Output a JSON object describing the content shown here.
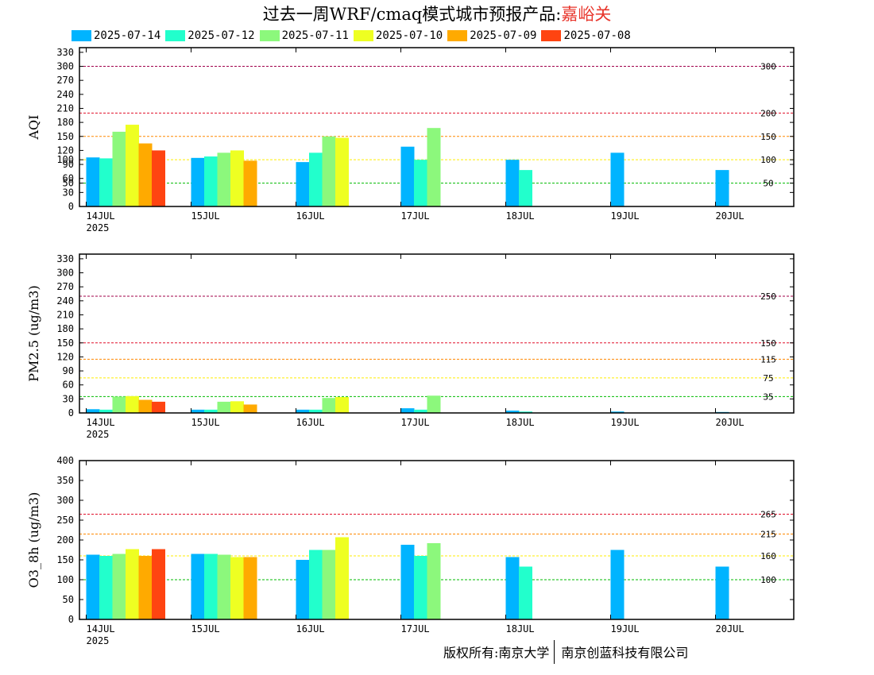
{
  "title": {
    "main": "过去一周WRF/cmaq模式城市预报产品:",
    "city": "嘉峪关"
  },
  "footer": {
    "left": "版权所有:南京大学",
    "right": "南京创蓝科技有限公司"
  },
  "colors": {
    "2025-07-14": "#00b4ff",
    "2025-07-12": "#22ffcc",
    "2025-07-11": "#8cf87c",
    "2025-07-10": "#eeff22",
    "2025-07-09": "#ffaa00",
    "2025-07-08": "#ff4411"
  },
  "chart_data": [
    {
      "type": "bar",
      "ylabel": "AQI",
      "ylim": [
        0,
        340
      ],
      "yticks": [
        0,
        30,
        50,
        60,
        90,
        100,
        120,
        150,
        180,
        210,
        240,
        270,
        300,
        330
      ],
      "categories": [
        "14JUL",
        "15JUL",
        "16JUL",
        "17JUL",
        "18JUL",
        "19JUL",
        "20JUL"
      ],
      "year_label": "2025",
      "reference_lines": [
        {
          "value": 300,
          "label": "300",
          "color": "#a0004a"
        },
        {
          "value": 200,
          "label": "200",
          "color": "#e0102a"
        },
        {
          "value": 150,
          "label": "150",
          "color": "#ff8800"
        },
        {
          "value": 100,
          "label": "100",
          "color": "#ffee00"
        },
        {
          "value": 50,
          "label": "50",
          "color": "#00bb00"
        }
      ],
      "series": [
        {
          "name": "2025-07-14",
          "values": [
            105,
            104,
            95,
            128,
            100,
            115,
            78
          ]
        },
        {
          "name": "2025-07-12",
          "values": [
            103,
            107,
            115,
            100,
            78,
            null,
            null
          ]
        },
        {
          "name": "2025-07-11",
          "values": [
            160,
            115,
            150,
            168,
            null,
            null,
            null
          ]
        },
        {
          "name": "2025-07-10",
          "values": [
            175,
            120,
            147,
            null,
            null,
            null,
            null
          ]
        },
        {
          "name": "2025-07-09",
          "values": [
            135,
            98,
            null,
            null,
            null,
            null,
            null
          ]
        },
        {
          "name": "2025-07-08",
          "values": [
            120,
            null,
            null,
            null,
            null,
            null,
            null
          ]
        }
      ]
    },
    {
      "type": "bar",
      "ylabel": "PM2.5 (ug/m3)",
      "ylim": [
        0,
        340
      ],
      "yticks": [
        0,
        30,
        60,
        90,
        120,
        150,
        180,
        210,
        240,
        270,
        300,
        330
      ],
      "categories": [
        "14JUL",
        "15JUL",
        "16JUL",
        "17JUL",
        "18JUL",
        "19JUL",
        "20JUL"
      ],
      "year_label": "2025",
      "reference_lines": [
        {
          "value": 250,
          "label": "250",
          "color": "#a0004a"
        },
        {
          "value": 150,
          "label": "150",
          "color": "#e0102a"
        },
        {
          "value": 115,
          "label": "115",
          "color": "#ff8800"
        },
        {
          "value": 75,
          "label": "75",
          "color": "#ffee00"
        },
        {
          "value": 35,
          "label": "35",
          "color": "#00bb00"
        }
      ],
      "series": [
        {
          "name": "2025-07-14",
          "values": [
            8,
            7,
            7,
            10,
            5,
            3,
            2
          ]
        },
        {
          "name": "2025-07-12",
          "values": [
            7,
            7,
            7,
            7,
            3,
            null,
            null
          ]
        },
        {
          "name": "2025-07-11",
          "values": [
            35,
            24,
            32,
            37,
            null,
            null,
            null
          ]
        },
        {
          "name": "2025-07-10",
          "values": [
            36,
            25,
            34,
            null,
            null,
            null,
            null
          ]
        },
        {
          "name": "2025-07-09",
          "values": [
            28,
            18,
            null,
            null,
            null,
            null,
            null
          ]
        },
        {
          "name": "2025-07-08",
          "values": [
            24,
            null,
            null,
            null,
            null,
            null,
            null
          ]
        }
      ]
    },
    {
      "type": "bar",
      "ylabel": "O3_8h (ug/m3)",
      "ylim": [
        0,
        400
      ],
      "yticks": [
        0,
        50,
        100,
        150,
        200,
        250,
        300,
        350,
        400
      ],
      "categories": [
        "14JUL",
        "15JUL",
        "16JUL",
        "17JUL",
        "18JUL",
        "19JUL",
        "20JUL"
      ],
      "year_label": "2025",
      "reference_lines": [
        {
          "value": 265,
          "label": "265",
          "color": "#e0102a"
        },
        {
          "value": 215,
          "label": "215",
          "color": "#ff8800"
        },
        {
          "value": 160,
          "label": "160",
          "color": "#ffee00"
        },
        {
          "value": 100,
          "label": "100",
          "color": "#00bb00"
        }
      ],
      "series": [
        {
          "name": "2025-07-14",
          "values": [
            163,
            165,
            150,
            188,
            157,
            175,
            133
          ]
        },
        {
          "name": "2025-07-12",
          "values": [
            160,
            165,
            175,
            160,
            133,
            null,
            null
          ]
        },
        {
          "name": "2025-07-11",
          "values": [
            165,
            163,
            175,
            192,
            null,
            null,
            null
          ]
        },
        {
          "name": "2025-07-10",
          "values": [
            177,
            157,
            207,
            null,
            null,
            null,
            null
          ]
        },
        {
          "name": "2025-07-09",
          "values": [
            160,
            157,
            null,
            null,
            null,
            null,
            null
          ]
        },
        {
          "name": "2025-07-08",
          "values": [
            177,
            null,
            null,
            null,
            null,
            null,
            null
          ]
        }
      ]
    }
  ]
}
